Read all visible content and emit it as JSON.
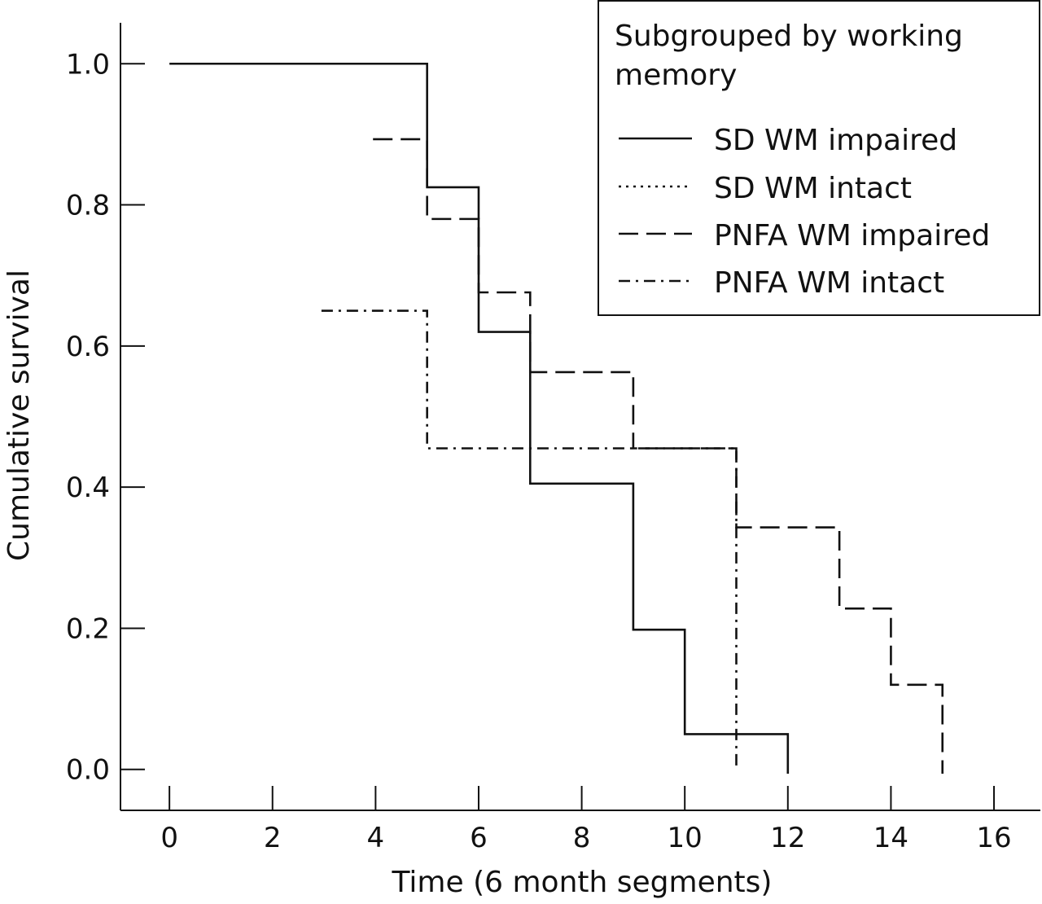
{
  "chart_data": {
    "type": "line",
    "title": "",
    "xlabel": "Time (6 month segments)",
    "ylabel": "Cumulative survival",
    "xlim": [
      -0.95,
      16.9
    ],
    "ylim": [
      -0.058,
      1.058
    ],
    "xticks": [
      0,
      2,
      4,
      6,
      8,
      10,
      12,
      14,
      16
    ],
    "yticks": [
      0.0,
      0.2,
      0.4,
      0.6,
      0.8,
      1.0
    ],
    "xtick_labels": [
      "0",
      "2",
      "4",
      "6",
      "8",
      "10",
      "12",
      "14",
      "16"
    ],
    "ytick_labels": [
      "0.0",
      "0.2",
      "0.4",
      "0.6",
      "0.8",
      "1.0"
    ],
    "grid": false,
    "legend": {
      "title_lines": [
        "Subgrouped by working",
        "memory"
      ],
      "position": "top-right"
    },
    "series": [
      {
        "name": "SD WM impaired",
        "dash": "solid",
        "step_points": [
          [
            0,
            1.0
          ],
          [
            5,
            1.0
          ],
          [
            5,
            0.825
          ],
          [
            6,
            0.825
          ],
          [
            6,
            0.62
          ],
          [
            7,
            0.62
          ],
          [
            7,
            0.405
          ],
          [
            9,
            0.405
          ],
          [
            9,
            0.198
          ],
          [
            10,
            0.198
          ],
          [
            10,
            0.05
          ],
          [
            12,
            0.05
          ],
          [
            12,
            -0.006
          ]
        ]
      },
      {
        "name": "SD WM intact",
        "dash": "dotted",
        "step_points": []
      },
      {
        "name": "PNFA WM impaired",
        "dash": "dashed",
        "step_points": [
          [
            3.95,
            0.893
          ],
          [
            5,
            0.893
          ],
          [
            5,
            0.78
          ],
          [
            6,
            0.78
          ],
          [
            6,
            0.676
          ],
          [
            7,
            0.676
          ],
          [
            7,
            0.563
          ],
          [
            9,
            0.563
          ],
          [
            9,
            0.455
          ],
          [
            11,
            0.455
          ],
          [
            11,
            0.343
          ],
          [
            13,
            0.343
          ],
          [
            13,
            0.228
          ],
          [
            14,
            0.228
          ],
          [
            14,
            0.12
          ],
          [
            15,
            0.12
          ],
          [
            15,
            -0.006
          ]
        ]
      },
      {
        "name": "PNFA WM intact",
        "dash": "dashdot",
        "step_points": [
          [
            2.95,
            0.65
          ],
          [
            5,
            0.65
          ],
          [
            5,
            0.455
          ],
          [
            11,
            0.455
          ],
          [
            11,
            0.0
          ]
        ]
      }
    ]
  }
}
